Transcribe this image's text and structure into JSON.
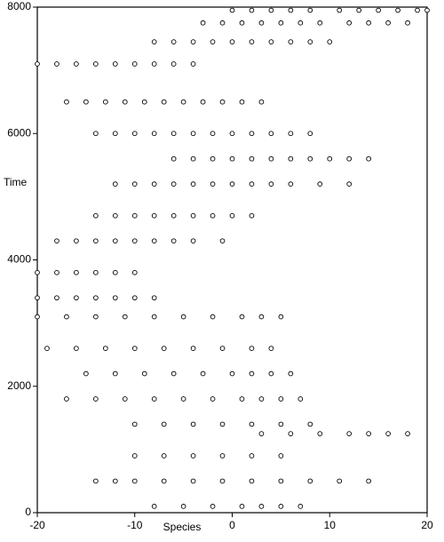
{
  "chart_data": {
    "type": "scatter",
    "xlabel": "Species",
    "ylabel": "Time",
    "color": "#000000",
    "xlim": [
      -20,
      20
    ],
    "ylim": [
      0,
      8000
    ],
    "xticks": [
      -20,
      -10,
      0,
      10,
      20
    ],
    "yticks": [
      0,
      2000,
      4000,
      6000,
      8000
    ],
    "x": [
      0,
      2,
      4,
      6,
      8,
      11,
      13,
      15,
      17,
      19,
      20,
      -3,
      -1,
      1,
      3,
      5,
      7,
      9,
      12,
      14,
      16,
      18,
      -8,
      -6,
      -4,
      -2,
      0,
      2,
      4,
      6,
      8,
      10,
      -20,
      -18,
      -16,
      -14,
      -12,
      -10,
      -8,
      -6,
      -4,
      -17,
      -15,
      -13,
      -11,
      -9,
      -7,
      -5,
      -3,
      -1,
      1,
      3,
      -14,
      -12,
      -10,
      -8,
      -6,
      -4,
      -2,
      0,
      2,
      4,
      6,
      8,
      -6,
      -4,
      -2,
      0,
      2,
      4,
      6,
      8,
      10,
      12,
      14,
      -12,
      -10,
      -8,
      -6,
      -4,
      -2,
      0,
      2,
      4,
      6,
      9,
      12,
      -14,
      -12,
      -10,
      -8,
      -6,
      -4,
      -2,
      0,
      2,
      -18,
      -16,
      -14,
      -12,
      -10,
      -8,
      -6,
      -4,
      -1,
      -20,
      -18,
      -16,
      -14,
      -12,
      -10,
      -20,
      -18,
      -16,
      -14,
      -12,
      -10,
      -8,
      -20,
      -17,
      -14,
      -11,
      -8,
      -5,
      -2,
      1,
      3,
      5,
      -19,
      -16,
      -13,
      -10,
      -7,
      -4,
      -1,
      2,
      4,
      -15,
      -12,
      -9,
      -6,
      -3,
      0,
      2,
      4,
      6,
      -17,
      -14,
      -11,
      -8,
      -5,
      -2,
      1,
      3,
      5,
      7,
      -10,
      -7,
      -4,
      -1,
      2,
      5,
      8,
      3,
      6,
      9,
      12,
      14,
      16,
      18,
      -10,
      -7,
      -4,
      -1,
      2,
      5,
      -14,
      -12,
      -10,
      -7,
      -4,
      -1,
      2,
      5,
      8,
      11,
      14,
      -8,
      -5,
      -2,
      1,
      3,
      5,
      7
    ],
    "values": [
      7950,
      7950,
      7950,
      7950,
      7950,
      7950,
      7950,
      7950,
      7950,
      7950,
      7950,
      7750,
      7750,
      7750,
      7750,
      7750,
      7750,
      7750,
      7750,
      7750,
      7750,
      7750,
      7450,
      7450,
      7450,
      7450,
      7450,
      7450,
      7450,
      7450,
      7450,
      7450,
      7100,
      7100,
      7100,
      7100,
      7100,
      7100,
      7100,
      7100,
      7100,
      6500,
      6500,
      6500,
      6500,
      6500,
      6500,
      6500,
      6500,
      6500,
      6500,
      6500,
      6000,
      6000,
      6000,
      6000,
      6000,
      6000,
      6000,
      6000,
      6000,
      6000,
      6000,
      6000,
      5600,
      5600,
      5600,
      5600,
      5600,
      5600,
      5600,
      5600,
      5600,
      5600,
      5600,
      5200,
      5200,
      5200,
      5200,
      5200,
      5200,
      5200,
      5200,
      5200,
      5200,
      5200,
      5200,
      4700,
      4700,
      4700,
      4700,
      4700,
      4700,
      4700,
      4700,
      4700,
      4300,
      4300,
      4300,
      4300,
      4300,
      4300,
      4300,
      4300,
      4300,
      3800,
      3800,
      3800,
      3800,
      3800,
      3800,
      3400,
      3400,
      3400,
      3400,
      3400,
      3400,
      3400,
      3100,
      3100,
      3100,
      3100,
      3100,
      3100,
      3100,
      3100,
      3100,
      3100,
      2600,
      2600,
      2600,
      2600,
      2600,
      2600,
      2600,
      2600,
      2600,
      2200,
      2200,
      2200,
      2200,
      2200,
      2200,
      2200,
      2200,
      2200,
      1800,
      1800,
      1800,
      1800,
      1800,
      1800,
      1800,
      1800,
      1800,
      1800,
      1400,
      1400,
      1400,
      1400,
      1400,
      1400,
      1400,
      1250,
      1250,
      1250,
      1250,
      1250,
      1250,
      1250,
      900,
      900,
      900,
      900,
      900,
      900,
      500,
      500,
      500,
      500,
      500,
      500,
      500,
      500,
      500,
      500,
      500,
      100,
      100,
      100,
      100,
      100,
      100,
      100
    ]
  }
}
